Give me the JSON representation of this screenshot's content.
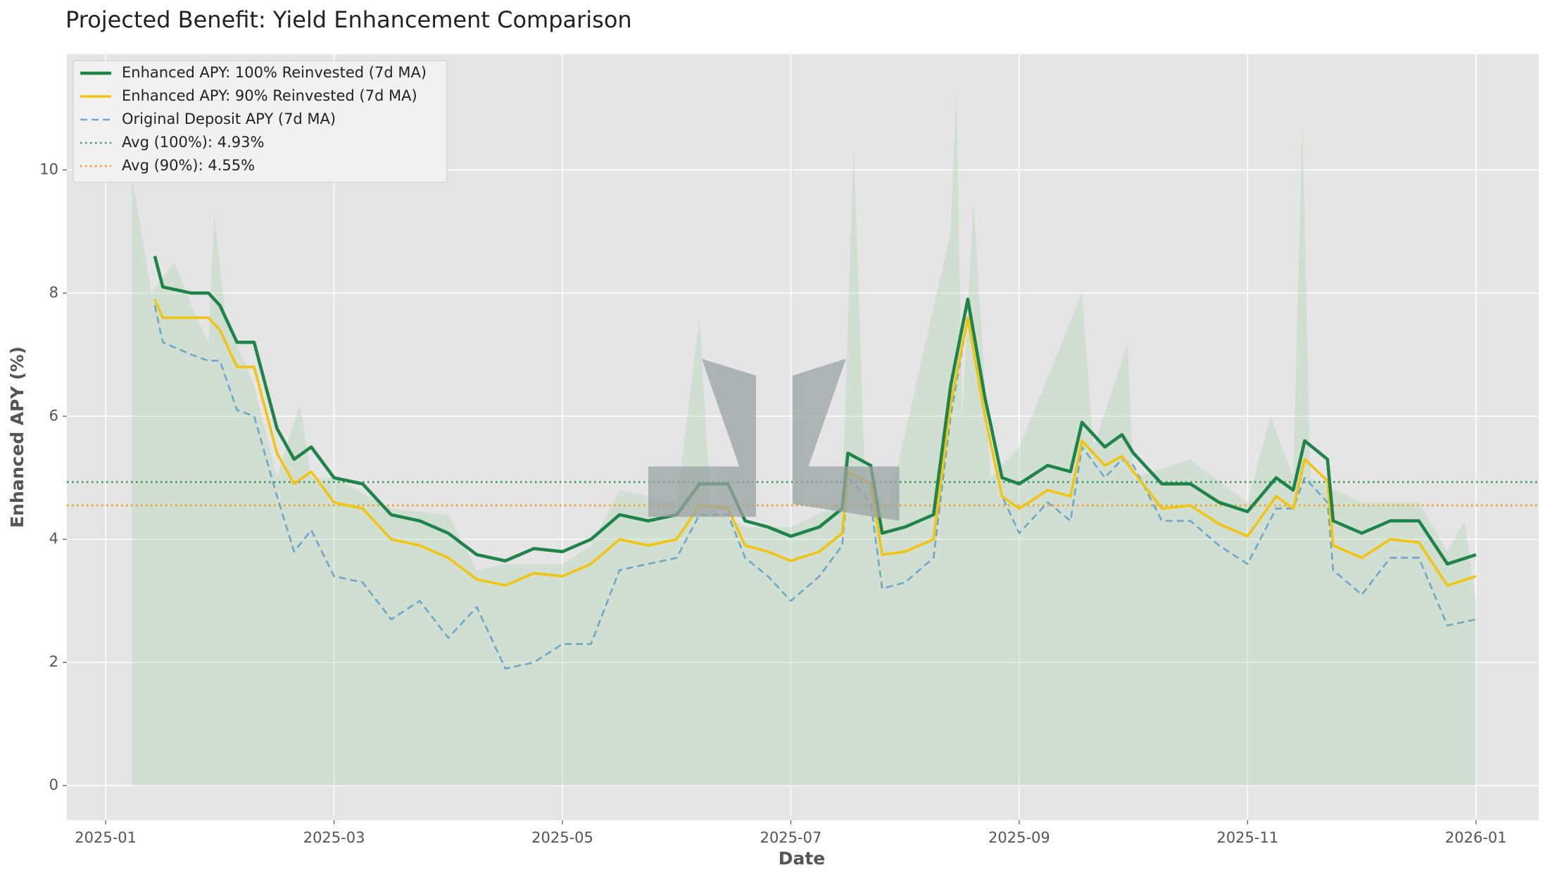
{
  "chart_data": {
    "type": "line",
    "title": "Projected Benefit: Yield Enhancement Comparison",
    "xlabel": "Date",
    "ylabel": "Enhanced APY (%)",
    "x": [
      0.43,
      0.5,
      0.75,
      0.9,
      1.0,
      1.15,
      1.3,
      1.5,
      1.65,
      1.8,
      2.0,
      2.25,
      2.5,
      2.75,
      3.0,
      3.25,
      3.5,
      3.75,
      4.0,
      4.25,
      4.5,
      4.75,
      5.0,
      5.2,
      5.45,
      5.6,
      5.8,
      6.0,
      6.25,
      6.45,
      6.5,
      6.7,
      6.8,
      7.0,
      7.25,
      7.4,
      7.55,
      7.7,
      7.85,
      8.0,
      8.25,
      8.45,
      8.55,
      8.75,
      8.9,
      9.0,
      9.25,
      9.5,
      9.75,
      10.0,
      10.25,
      10.4,
      10.5,
      10.7,
      10.75,
      11.0,
      11.25,
      11.5,
      11.75,
      12.0
    ],
    "series": [
      {
        "name": "Enhanced APY: 100% Reinvested (7d MA)",
        "color": "#1e8449",
        "style": "solid",
        "values": [
          8.6,
          8.1,
          8.0,
          8.0,
          7.8,
          7.2,
          7.2,
          5.8,
          5.3,
          5.5,
          5.0,
          4.9,
          4.4,
          4.3,
          4.1,
          3.75,
          3.65,
          3.85,
          3.8,
          4.0,
          4.4,
          4.3,
          4.4,
          4.9,
          4.9,
          4.3,
          4.2,
          4.05,
          4.2,
          4.5,
          5.4,
          5.2,
          4.1,
          4.2,
          4.4,
          6.5,
          7.9,
          6.3,
          5.0,
          4.9,
          5.2,
          5.1,
          5.9,
          5.5,
          5.7,
          5.4,
          4.9,
          4.9,
          4.6,
          4.45,
          5.0,
          4.8,
          5.6,
          5.3,
          4.3,
          4.1,
          4.3,
          4.3,
          3.6,
          3.75
        ]
      },
      {
        "name": "Enhanced APY: 90% Reinvested (7d MA)",
        "color": "#f1c40f",
        "style": "solid",
        "values": [
          7.9,
          7.6,
          7.6,
          7.6,
          7.4,
          6.8,
          6.8,
          5.4,
          4.9,
          5.1,
          4.6,
          4.5,
          4.0,
          3.9,
          3.7,
          3.35,
          3.25,
          3.45,
          3.4,
          3.6,
          4.0,
          3.9,
          4.0,
          4.55,
          4.5,
          3.9,
          3.8,
          3.65,
          3.8,
          4.1,
          5.1,
          4.9,
          3.75,
          3.8,
          4.0,
          6.2,
          7.6,
          6.0,
          4.7,
          4.5,
          4.8,
          4.7,
          5.6,
          5.2,
          5.35,
          5.1,
          4.5,
          4.55,
          4.25,
          4.05,
          4.7,
          4.5,
          5.3,
          4.95,
          3.9,
          3.7,
          4.0,
          3.95,
          3.25,
          3.4
        ]
      },
      {
        "name": "Original Deposit APY (7d MA)",
        "color": "#5d9cc5",
        "style": "dashed",
        "values": [
          7.8,
          7.2,
          7.0,
          6.9,
          6.9,
          6.1,
          6.0,
          4.7,
          3.8,
          4.15,
          3.4,
          3.3,
          2.7,
          3.0,
          2.4,
          2.9,
          1.9,
          2.0,
          2.3,
          2.3,
          3.5,
          3.6,
          3.7,
          4.4,
          4.4,
          3.7,
          3.4,
          3.0,
          3.4,
          3.9,
          5.0,
          4.6,
          3.2,
          3.3,
          3.7,
          6.0,
          7.6,
          6.0,
          4.7,
          4.1,
          4.6,
          4.3,
          5.5,
          5.0,
          5.3,
          5.2,
          4.3,
          4.3,
          3.9,
          3.6,
          4.5,
          4.5,
          5.0,
          4.6,
          3.5,
          3.1,
          3.7,
          3.7,
          2.6,
          2.7
        ]
      }
    ],
    "hlines": [
      {
        "name": "Avg (100%): 4.93%",
        "value": 4.93,
        "color": "#2e9c5a"
      },
      {
        "name": "Avg (90%): 4.55%",
        "value": 4.55,
        "color": "#f39c12"
      }
    ],
    "area": {
      "color": "#a8d5b0",
      "x": [
        0.23,
        0.4,
        0.6,
        0.75,
        0.9,
        0.95,
        1.05,
        1.3,
        1.5,
        1.7,
        1.8,
        2.0,
        2.5,
        3.0,
        3.25,
        3.5,
        4.0,
        4.25,
        4.5,
        5.0,
        5.2,
        5.3,
        5.6,
        6.0,
        6.45,
        6.55,
        6.65,
        6.85,
        7.4,
        7.45,
        7.5,
        7.6,
        7.75,
        8.0,
        8.55,
        8.65,
        8.95,
        9.0,
        9.5,
        10.0,
        10.2,
        10.4,
        10.48,
        10.55,
        11.0,
        11.5,
        11.75,
        11.9,
        12.0
      ],
      "values": [
        9.9,
        8.0,
        8.5,
        7.8,
        7.2,
        9.3,
        7.6,
        6.5,
        5.0,
        6.2,
        5.0,
        5.0,
        4.5,
        4.4,
        3.5,
        3.6,
        3.6,
        3.9,
        4.8,
        4.6,
        7.6,
        4.5,
        4.2,
        4.2,
        4.6,
        10.4,
        5.0,
        4.5,
        9.0,
        11.3,
        6.0,
        9.5,
        5.0,
        5.5,
        8.0,
        5.5,
        7.2,
        5.0,
        5.3,
        4.6,
        6.0,
        5.0,
        10.8,
        5.0,
        4.6,
        4.6,
        3.8,
        4.3,
        3.0
      ]
    },
    "xlim": [
      -0.34,
      12.55
    ],
    "ylim": [
      -0.56,
      11.88
    ],
    "xticks": [
      {
        "value": 0,
        "label": "2025-01"
      },
      {
        "value": 2,
        "label": "2025-03"
      },
      {
        "value": 4,
        "label": "2025-05"
      },
      {
        "value": 6,
        "label": "2025-07"
      },
      {
        "value": 8,
        "label": "2025-09"
      },
      {
        "value": 10,
        "label": "2025-11"
      },
      {
        "value": 12,
        "label": "2026-01"
      }
    ],
    "yticks": [
      0,
      2,
      4,
      6,
      8,
      10
    ],
    "grid": true,
    "legend": "upper left"
  }
}
